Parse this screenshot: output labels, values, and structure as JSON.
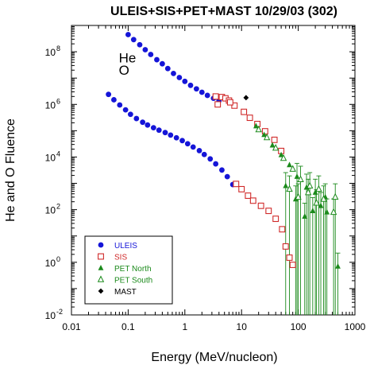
{
  "chart_data": {
    "type": "scatter",
    "title": "ULEIS+SIS+PET+MAST 10/29/03 (302)",
    "xlabel": "Energy (MeV/nucleon)",
    "ylabel": "He and O Fluence",
    "x_scale": "log",
    "y_scale": "log",
    "xlim": [
      0.01,
      1000
    ],
    "ylim": [
      0.01,
      1000000000
    ],
    "grid": false,
    "x_ticks": [
      {
        "value": 0.01,
        "label": "0.01"
      },
      {
        "value": 0.1,
        "label": "0.1"
      },
      {
        "value": 1,
        "label": "1"
      },
      {
        "value": 10,
        "label": "10"
      },
      {
        "value": 100,
        "label": "100"
      },
      {
        "value": 1000,
        "label": "1000"
      }
    ],
    "y_ticks": [
      {
        "value": 0.01,
        "base": "10",
        "exp": "-2"
      },
      {
        "value": 1,
        "base": "10",
        "exp": "0"
      },
      {
        "value": 100,
        "base": "10",
        "exp": "2"
      },
      {
        "value": 10000,
        "base": "10",
        "exp": "4"
      },
      {
        "value": 1000000,
        "base": "10",
        "exp": "6"
      },
      {
        "value": 100000000,
        "base": "10",
        "exp": "8"
      }
    ],
    "annotations": [
      {
        "text": "He",
        "x": 0.083,
        "y": 60000000
      },
      {
        "text": "O",
        "x": 0.083,
        "y": 20000000
      }
    ],
    "legend_position": "bottom-left",
    "series": [
      {
        "name": "ULEIS",
        "marker": "circle",
        "color": "#1515d8",
        "text_color": "#1515d8",
        "points": [
          [
            0.1,
            450000000
          ],
          [
            0.125,
            290000000
          ],
          [
            0.16,
            185000000
          ],
          [
            0.2,
            120000000
          ],
          [
            0.25,
            79000000
          ],
          [
            0.32,
            50000000
          ],
          [
            0.4,
            35000000
          ],
          [
            0.5,
            23000000
          ],
          [
            0.63,
            15000000
          ],
          [
            0.8,
            10500000
          ],
          [
            1.0,
            7500000
          ],
          [
            1.26,
            5300000
          ],
          [
            1.6,
            3900000
          ],
          [
            2.0,
            2900000
          ],
          [
            2.5,
            2200000
          ],
          [
            3.2,
            1700000
          ],
          [
            4.0,
            1400000
          ],
          [
            0.045,
            2400000
          ],
          [
            0.056,
            1500000
          ],
          [
            0.071,
            950000
          ],
          [
            0.09,
            620000
          ],
          [
            0.11,
            420000
          ],
          [
            0.14,
            290000
          ],
          [
            0.18,
            210000
          ],
          [
            0.22,
            165000
          ],
          [
            0.28,
            130000
          ],
          [
            0.35,
            105000
          ],
          [
            0.45,
            85000
          ],
          [
            0.56,
            68000
          ],
          [
            0.71,
            54000
          ],
          [
            0.9,
            42000
          ],
          [
            1.12,
            32000
          ],
          [
            1.4,
            24000
          ],
          [
            1.8,
            17500
          ],
          [
            2.2,
            12500
          ],
          [
            2.8,
            8500
          ],
          [
            3.5,
            5500
          ],
          [
            4.5,
            3200
          ],
          [
            5.6,
            1800
          ],
          [
            7.0,
            900
          ]
        ]
      },
      {
        "name": "SIS",
        "marker": "square-open",
        "color": "#d02a2a",
        "text_color": "#d02a2a",
        "points": [
          [
            3.5,
            2000000
          ],
          [
            4.5,
            1900000
          ],
          [
            5.2,
            1700000
          ],
          [
            6.0,
            1400000
          ],
          [
            3.8,
            1000000
          ],
          [
            7.5,
            900000
          ],
          [
            11,
            520000
          ],
          [
            14,
            310000
          ],
          [
            19,
            180000
          ],
          [
            26,
            95000
          ],
          [
            38,
            45000
          ],
          [
            50,
            17000
          ],
          [
            6.3,
            1200000
          ],
          [
            8.0,
            950
          ],
          [
            10,
            600
          ],
          [
            13,
            340
          ],
          [
            16,
            220
          ],
          [
            22,
            140
          ],
          [
            30,
            90
          ],
          [
            40,
            45
          ],
          [
            52,
            18
          ],
          [
            60,
            4
          ],
          [
            70,
            1.5
          ],
          [
            80,
            0.8
          ]
        ]
      },
      {
        "name": "PET North",
        "marker": "triangle-filled",
        "color": "#1b8a1b",
        "text_color": "#1b8a1b",
        "points": [
          [
            18,
            150000
          ],
          [
            25,
            70000
          ],
          [
            35,
            28000
          ],
          [
            50,
            12000
          ],
          [
            70,
            5000
          ],
          [
            95,
            1800
          ],
          [
            140,
            700
          ],
          [
            200,
            450
          ],
          [
            300,
            300
          ],
          [
            60,
            800
          ],
          [
            90,
            250
          ],
          [
            130,
            55
          ],
          [
            180,
            90
          ],
          [
            250,
            140
          ],
          [
            320,
            80
          ],
          [
            500,
            0.7
          ]
        ]
      },
      {
        "name": "PET South",
        "marker": "triangle-open",
        "color": "#1b8a1b",
        "text_color": "#1b8a1b",
        "points": [
          [
            20,
            110000
          ],
          [
            28,
            55000
          ],
          [
            40,
            22000
          ],
          [
            55,
            9000
          ],
          [
            80,
            3500
          ],
          [
            110,
            1400
          ],
          [
            160,
            800
          ],
          [
            230,
            600
          ],
          [
            450,
            300
          ],
          [
            70,
            600
          ],
          [
            100,
            300
          ],
          [
            150,
            450
          ],
          [
            210,
            180
          ],
          [
            280,
            250
          ],
          [
            420,
            80
          ]
        ]
      },
      {
        "name": "MAST",
        "marker": "diamond",
        "color": "#000000",
        "text_color": "#000000",
        "points": [
          [
            12,
            1800000
          ]
        ]
      }
    ]
  }
}
